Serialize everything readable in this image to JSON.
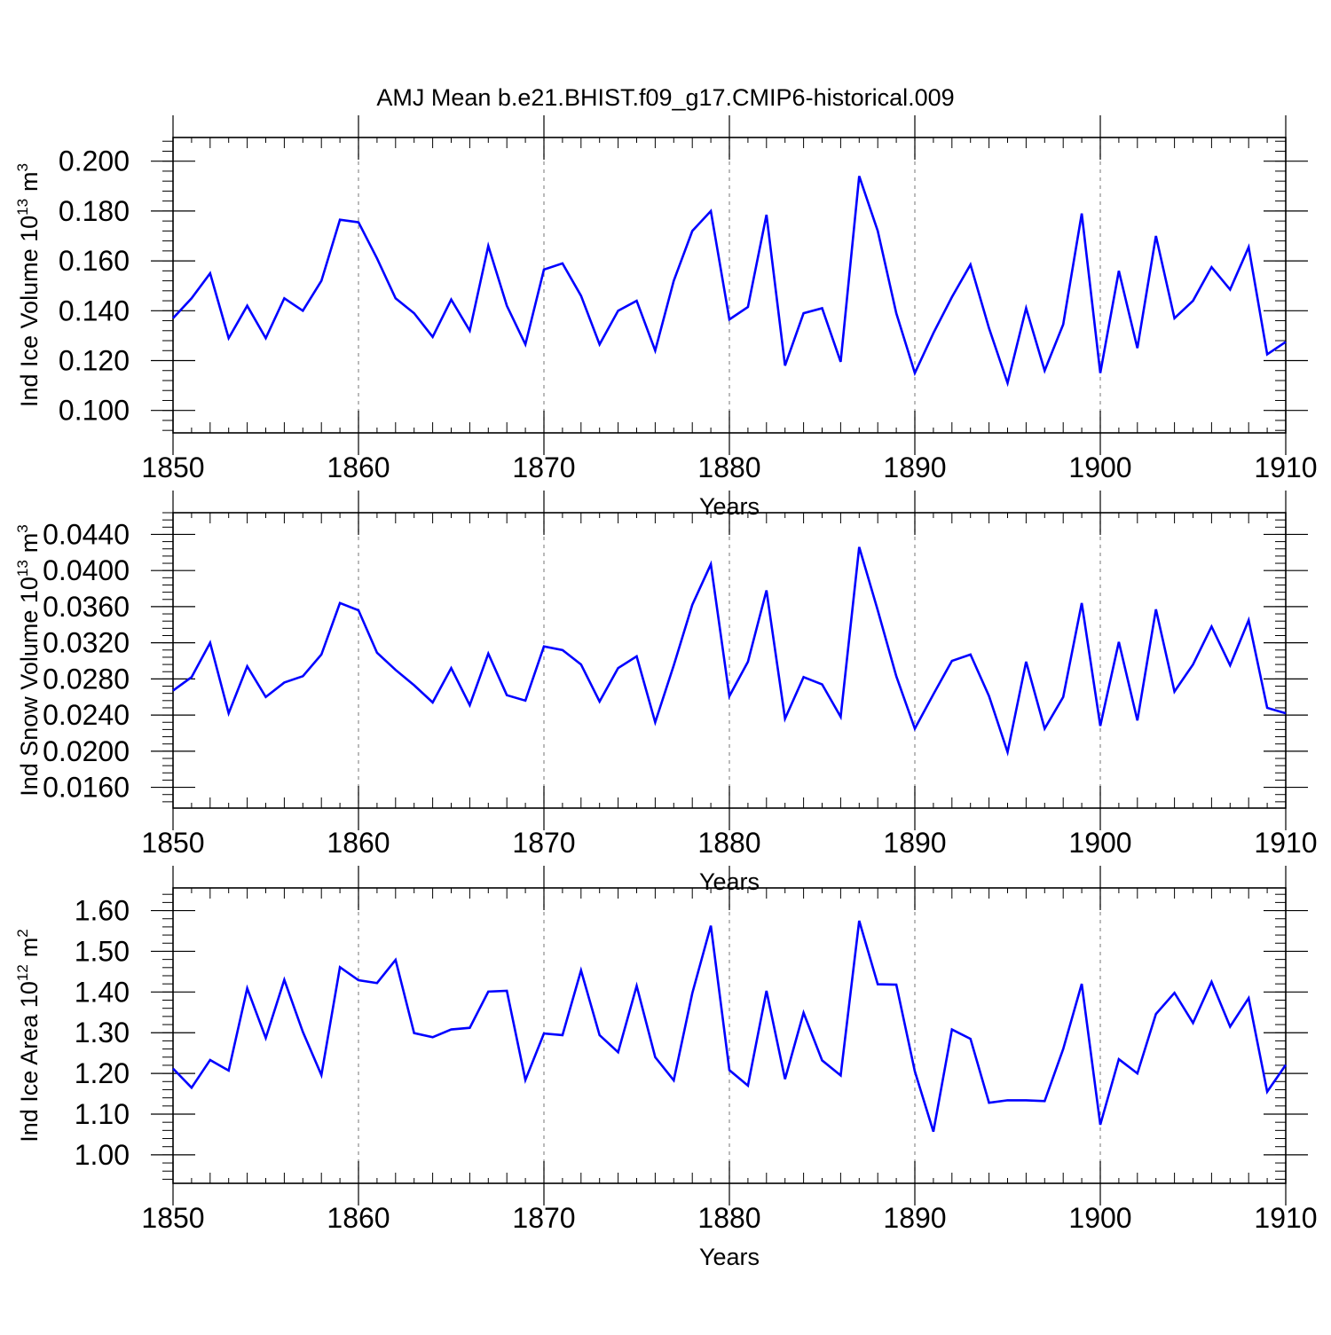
{
  "title": "AMJ Mean b.e21.BHIST.f09_g17.CMIP6-historical.009",
  "colors": {
    "series": "#0000ff",
    "axis": "#000000",
    "grid": "#8c8c8c",
    "background": "#ffffff"
  },
  "chart_data": [
    {
      "type": "line",
      "ylabel_main": "Ind Ice Volume 10",
      "ylabel_exp": "13",
      "ylabel_unit": "m",
      "ylabel_unit_exp": "3",
      "xlabel": "Years",
      "xlim": [
        1850,
        1910
      ],
      "ylim": [
        0.091,
        0.2095
      ],
      "xticks": [
        "1850",
        "1860",
        "1870",
        "1880",
        "1890",
        "1900",
        "1910"
      ],
      "yticks": [
        "0.100",
        "0.120",
        "0.140",
        "0.160",
        "0.180",
        "0.200"
      ],
      "x_start": 1850,
      "values": [
        0.137,
        0.145,
        0.155,
        0.129,
        0.142,
        0.129,
        0.145,
        0.14,
        0.152,
        0.1765,
        0.1755,
        0.161,
        0.145,
        0.139,
        0.1295,
        0.1445,
        0.132,
        0.166,
        0.142,
        0.1265,
        0.1565,
        0.159,
        0.146,
        0.1265,
        0.14,
        0.144,
        0.124,
        0.152,
        0.172,
        0.18,
        0.1365,
        0.1415,
        0.1785,
        0.118,
        0.139,
        0.141,
        0.1195,
        0.194,
        0.172,
        0.139,
        0.115,
        0.131,
        0.1455,
        0.1585,
        0.133,
        0.111,
        0.141,
        0.116,
        0.1345,
        0.179,
        0.115,
        0.156,
        0.125,
        0.17,
        0.137,
        0.144,
        0.1575,
        0.1485,
        0.1655,
        0.1225,
        0.1275
      ]
    },
    {
      "type": "line",
      "ylabel_main": "Ind Snow Volume 10",
      "ylabel_exp": "13",
      "ylabel_unit": "m",
      "ylabel_unit_exp": "3",
      "xlabel": "Years",
      "xlim": [
        1850,
        1910
      ],
      "ylim": [
        0.0137,
        0.0464
      ],
      "xticks": [
        "1850",
        "1860",
        "1870",
        "1880",
        "1890",
        "1900",
        "1910"
      ],
      "yticks": [
        "0.0160",
        "0.0200",
        "0.0240",
        "0.0280",
        "0.0320",
        "0.0360",
        "0.0400",
        "0.0440"
      ],
      "x_start": 1850,
      "values": [
        0.0267,
        0.0282,
        0.032,
        0.0242,
        0.0294,
        0.026,
        0.0276,
        0.0283,
        0.0307,
        0.0364,
        0.0356,
        0.0309,
        0.029,
        0.0273,
        0.0254,
        0.0292,
        0.0251,
        0.0308,
        0.0262,
        0.0256,
        0.0316,
        0.0312,
        0.0296,
        0.0255,
        0.0292,
        0.0305,
        0.0232,
        0.0295,
        0.0362,
        0.0407,
        0.0261,
        0.0299,
        0.0378,
        0.0236,
        0.0282,
        0.0274,
        0.0238,
        0.0426,
        0.0356,
        0.0283,
        0.0225,
        0.0263,
        0.03,
        0.0307,
        0.0261,
        0.0199,
        0.0299,
        0.0225,
        0.026,
        0.0364,
        0.0228,
        0.0321,
        0.0234,
        0.0357,
        0.0266,
        0.0296,
        0.0338,
        0.0295,
        0.0345,
        0.0248,
        0.0242
      ]
    },
    {
      "type": "line",
      "ylabel_main": "Ind Ice Area 10",
      "ylabel_exp": "12",
      "ylabel_unit": "m",
      "ylabel_unit_exp": "2",
      "xlabel": "Years",
      "xlim": [
        1850,
        1910
      ],
      "ylim": [
        0.93,
        1.6557
      ],
      "xticks": [
        "1850",
        "1860",
        "1870",
        "1880",
        "1890",
        "1900",
        "1910"
      ],
      "yticks": [
        "1.00",
        "1.10",
        "1.20",
        "1.30",
        "1.40",
        "1.50",
        "1.60"
      ],
      "x_start": 1850,
      "values": [
        1.212,
        1.165,
        1.233,
        1.207,
        1.409,
        1.287,
        1.43,
        1.302,
        1.196,
        1.461,
        1.429,
        1.422,
        1.479,
        1.299,
        1.289,
        1.308,
        1.312,
        1.401,
        1.403,
        1.184,
        1.298,
        1.294,
        1.453,
        1.294,
        1.252,
        1.415,
        1.24,
        1.183,
        1.397,
        1.563,
        1.208,
        1.17,
        1.403,
        1.186,
        1.349,
        1.232,
        1.195,
        1.575,
        1.419,
        1.418,
        1.205,
        1.057,
        1.308,
        1.285,
        1.128,
        1.134,
        1.134,
        1.132,
        1.26,
        1.42,
        1.074,
        1.235,
        1.2,
        1.346,
        1.398,
        1.324,
        1.425,
        1.315,
        1.385,
        1.155,
        1.221
      ]
    }
  ]
}
